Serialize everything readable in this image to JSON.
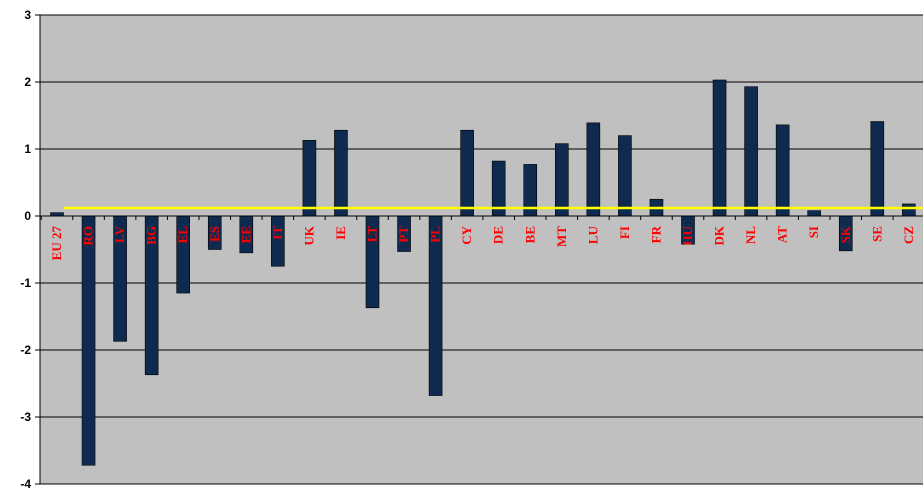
{
  "chart_data": {
    "type": "bar",
    "categories": [
      "EU 27",
      "RO",
      "LV",
      "BG",
      "EL",
      "ES",
      "EE",
      "IT",
      "UK",
      "IE",
      "LT",
      "PT",
      "PL",
      "CY",
      "DE",
      "BE",
      "MT",
      "LU",
      "FI",
      "FR",
      "HU",
      "DK",
      "NL",
      "AT",
      "SI",
      "SK",
      "SE",
      "CZ"
    ],
    "values": [
      0.05,
      -3.72,
      -1.87,
      -2.37,
      -1.15,
      -0.5,
      -0.55,
      -0.75,
      1.13,
      1.28,
      -1.37,
      -0.53,
      -2.68,
      1.28,
      0.82,
      0.77,
      1.08,
      1.39,
      1.2,
      0.25,
      -0.42,
      2.03,
      1.93,
      1.36,
      0.08,
      -0.52,
      1.41,
      0.18
    ],
    "ylim": [
      -4,
      3
    ],
    "yticks": [
      3,
      2,
      1,
      0,
      -1,
      -2,
      -3,
      -4
    ],
    "reference_line_value": 0.12,
    "grid": true,
    "legend": "none",
    "colors": {
      "plot_background": "#c0c0c0",
      "bar": "#0f2a4f",
      "category_label": "#ff0000",
      "reference_line": "#ffff00",
      "gridline": "#000000"
    }
  }
}
